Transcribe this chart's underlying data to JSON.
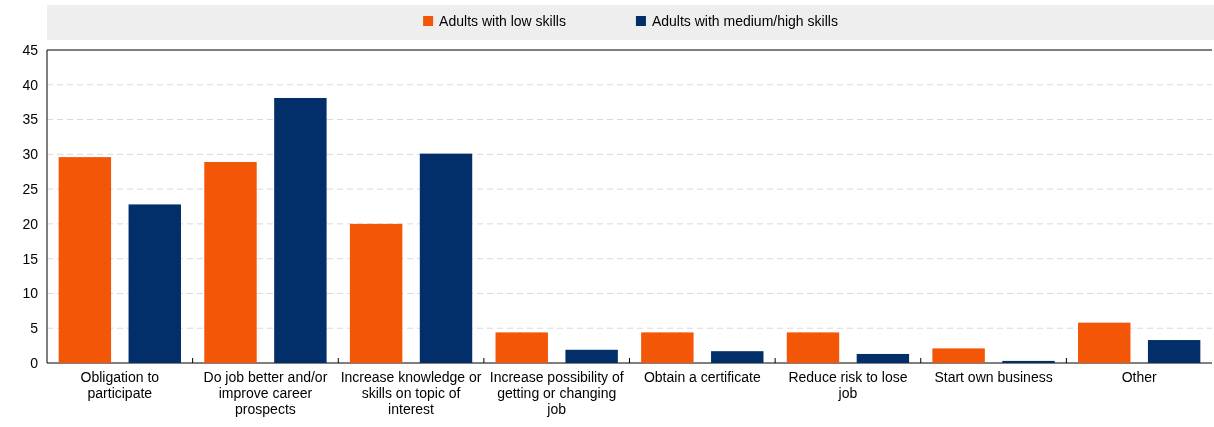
{
  "chart_data": {
    "type": "bar",
    "categories": [
      "Obligation to participate",
      "Do job better and/or improve career prospects",
      "Increase knowledge or skills on topic of interest",
      "Increase possibility of getting or changing job",
      "Obtain a certificate",
      "Reduce risk to lose job",
      "Start own business",
      "Other"
    ],
    "series": [
      {
        "name": "Adults with low skills",
        "color": "#f35606",
        "values": [
          29.6,
          28.9,
          20.0,
          4.4,
          4.4,
          4.4,
          2.1,
          5.8
        ]
      },
      {
        "name": "Adults with medium/high skills",
        "color": "#022f6a",
        "values": [
          22.8,
          38.1,
          30.1,
          1.9,
          1.7,
          1.3,
          0.3,
          3.3
        ]
      }
    ],
    "ylim": [
      0,
      45
    ],
    "yticks": [
      0,
      5,
      10,
      15,
      20,
      25,
      30,
      35,
      40,
      45
    ],
    "grid": "y",
    "legend": "top"
  }
}
